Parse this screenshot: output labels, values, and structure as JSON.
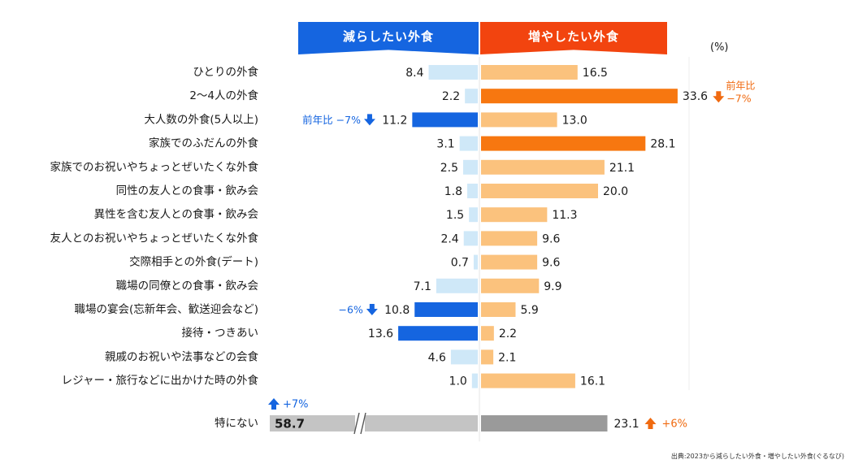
{
  "header": {
    "decrease_label": "減らしたい外食",
    "increase_label": "増やしたい外食",
    "unit": "(%)"
  },
  "source": "出典:2023から減らしたい外食・増やしたい外食(ぐるなび)",
  "colors": {
    "decrease_header": "#1565e0",
    "increase_header": "#f2440f",
    "decrease_light": "#cfe8f8",
    "decrease_dark": "#1565e0",
    "increase_light": "#fbc27d",
    "increase_dark": "#f77710",
    "none_left": "#c4c4c4",
    "none_right": "#9a9a9a",
    "annot_blue": "#1565e0",
    "annot_orange": "#f06a10"
  },
  "chart_data": {
    "type": "bar",
    "orientation": "diverging-horizontal",
    "unit": "%",
    "categories": [
      "ひとりの外食",
      "2～4人の外食",
      "大人数の外食(5人以上)",
      "家族でのふだんの外食",
      "家族でのお祝いやちょっとぜいたくな外食",
      "同性の友人との食事・飲み会",
      "異性を含む友人との食事・飲み会",
      "友人とのお祝いやちょっとぜいたくな外食",
      "交際相手との外食(デート)",
      "職場の同僚との食事・飲み会",
      "職場の宴会(忘新年会、歓送迎会など)",
      "接待・つきあい",
      "親戚のお祝いや法事などの会食",
      "レジャー・旅行などに出かけた時の外食"
    ],
    "series": [
      {
        "name": "減らしたい外食",
        "values": [
          8.4,
          2.2,
          11.2,
          3.1,
          2.5,
          1.8,
          1.5,
          2.4,
          0.7,
          7.1,
          10.8,
          13.6,
          4.6,
          1.0
        ],
        "highlight": [
          false,
          false,
          true,
          false,
          false,
          false,
          false,
          false,
          false,
          false,
          true,
          true,
          false,
          false
        ]
      },
      {
        "name": "増やしたい外食",
        "values": [
          16.5,
          33.6,
          13.0,
          28.1,
          21.1,
          20.0,
          11.3,
          9.6,
          9.6,
          9.9,
          5.9,
          2.2,
          2.1,
          16.1
        ],
        "highlight": [
          false,
          true,
          false,
          true,
          false,
          false,
          false,
          false,
          false,
          false,
          false,
          false,
          false,
          false
        ]
      }
    ],
    "value_labels": {
      "decrease": [
        "8.4",
        "2.2",
        "11.2",
        "3.1",
        "2.5",
        "1.8",
        "1.5",
        "2.4",
        "0.7",
        "7.1",
        "10.8",
        "13.6",
        "4.6",
        "1.0"
      ],
      "increase": [
        "16.5",
        "33.6",
        "13.0",
        "28.1",
        "21.1",
        "20.0",
        "11.3",
        "9.6",
        "9.6",
        "9.9",
        "5.9",
        "2.2",
        "2.1",
        "16.1"
      ]
    },
    "annotations": [
      {
        "side": "decrease",
        "category_index": 2,
        "text": "前年比 −7%",
        "direction": "down"
      },
      {
        "side": "decrease",
        "category_index": 10,
        "text": "−6%",
        "direction": "down"
      },
      {
        "side": "increase",
        "category_index": 1,
        "text_top": "前年比",
        "text": "−7%",
        "direction": "down"
      }
    ],
    "none_row": {
      "label": "特にない",
      "decrease": 58.7,
      "increase": 23.1,
      "decrease_label": "58.7",
      "increase_label": "23.1",
      "axis_break": true,
      "decrease_change": "+7%",
      "increase_change": "+6%"
    },
    "grid": true
  }
}
